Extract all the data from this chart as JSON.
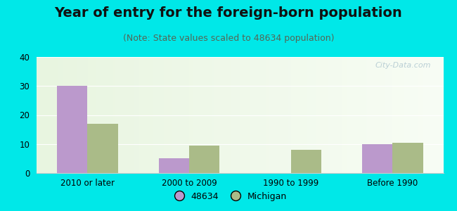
{
  "title": "Year of entry for the foreign-born population",
  "subtitle": "(Note: State values scaled to 48634 population)",
  "categories": [
    "2010 or later",
    "2000 to 2009",
    "1990 to 1999",
    "Before 1990"
  ],
  "values_48634": [
    30,
    5,
    0,
    10
  ],
  "values_michigan": [
    17,
    9.5,
    8,
    10.5
  ],
  "bar_color_48634": "#bb99cc",
  "bar_color_michigan": "#aabb88",
  "background_outer": "#00e8e8",
  "ylim": [
    0,
    40
  ],
  "yticks": [
    0,
    10,
    20,
    30,
    40
  ],
  "bar_width": 0.3,
  "legend_label_48634": "48634",
  "legend_label_michigan": "Michigan",
  "title_fontsize": 14,
  "subtitle_fontsize": 9,
  "tick_fontsize": 8.5,
  "legend_fontsize": 9,
  "watermark_text": "City-Data.com"
}
